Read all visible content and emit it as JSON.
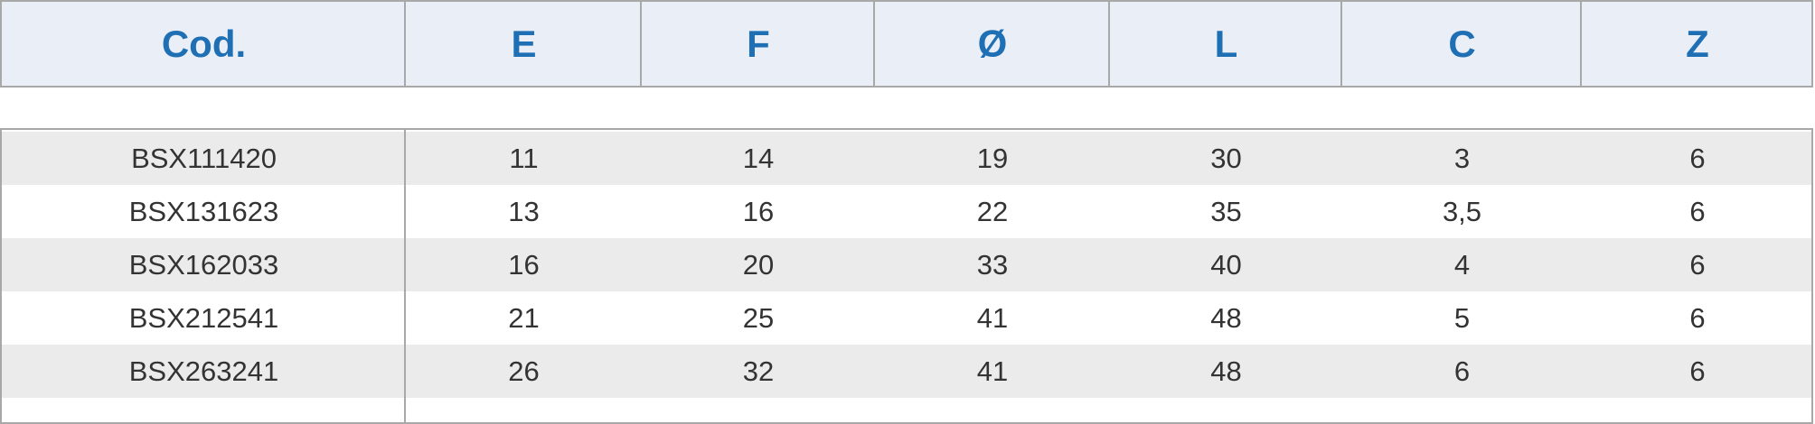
{
  "table": {
    "header": [
      "Cod.",
      "E",
      "F",
      "Ø",
      "L",
      "C",
      "Z"
    ],
    "rows": [
      [
        "BSX111420",
        "11",
        "14",
        "19",
        "30",
        "3",
        "6"
      ],
      [
        "BSX131623",
        "13",
        "16",
        "22",
        "35",
        "3,5",
        "6"
      ],
      [
        "BSX162033",
        "16",
        "20",
        "33",
        "40",
        "4",
        "6"
      ],
      [
        "BSX212541",
        "21",
        "25",
        "41",
        "48",
        "5",
        "6"
      ],
      [
        "BSX263241",
        "26",
        "32",
        "41",
        "48",
        "6",
        "6"
      ]
    ]
  }
}
